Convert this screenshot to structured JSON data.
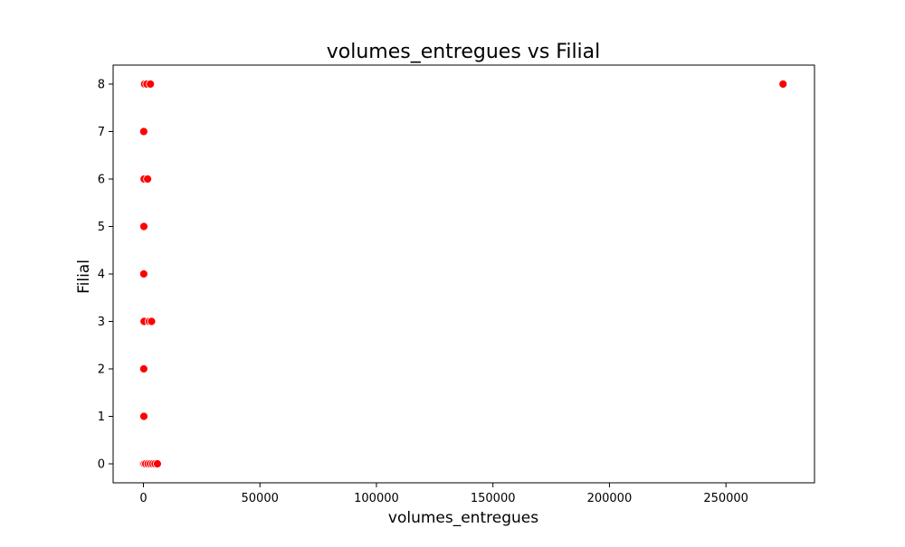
{
  "chart_data": {
    "type": "scatter",
    "title": "volumes_entregues vs Filial",
    "xlabel": "volumes_entregues",
    "ylabel": "Filial",
    "xlim": [
      -13000,
      288000
    ],
    "ylim": [
      -0.4,
      8.4
    ],
    "xticks": [
      0,
      50000,
      100000,
      150000,
      200000,
      250000
    ],
    "xtick_labels": [
      "0",
      "50000",
      "100000",
      "150000",
      "200000",
      "250000"
    ],
    "yticks": [
      0,
      1,
      2,
      3,
      4,
      5,
      6,
      7,
      8
    ],
    "ytick_labels": [
      "0",
      "1",
      "2",
      "3",
      "4",
      "5",
      "6",
      "7",
      "8"
    ],
    "grid": false,
    "marker_color": "#ff0000",
    "marker_edge_color": "#ffffff",
    "points": [
      {
        "x": 0,
        "y": 8
      },
      {
        "x": 200,
        "y": 8
      },
      {
        "x": 500,
        "y": 8
      },
      {
        "x": 1500,
        "y": 8
      },
      {
        "x": 3000,
        "y": 8
      },
      {
        "x": 274500,
        "y": 8
      },
      {
        "x": 0,
        "y": 7
      },
      {
        "x": 150,
        "y": 7
      },
      {
        "x": 0,
        "y": 6
      },
      {
        "x": 300,
        "y": 6
      },
      {
        "x": 1800,
        "y": 6
      },
      {
        "x": 0,
        "y": 5
      },
      {
        "x": 200,
        "y": 5
      },
      {
        "x": 0,
        "y": 4
      },
      {
        "x": 150,
        "y": 4
      },
      {
        "x": 0,
        "y": 3
      },
      {
        "x": 300,
        "y": 3
      },
      {
        "x": 2500,
        "y": 3
      },
      {
        "x": 3500,
        "y": 3
      },
      {
        "x": 0,
        "y": 2
      },
      {
        "x": 150,
        "y": 2
      },
      {
        "x": 0,
        "y": 1
      },
      {
        "x": 200,
        "y": 1
      },
      {
        "x": 0,
        "y": 0
      },
      {
        "x": 400,
        "y": 0
      },
      {
        "x": 1000,
        "y": 0
      },
      {
        "x": 2000,
        "y": 0
      },
      {
        "x": 3000,
        "y": 0
      },
      {
        "x": 4000,
        "y": 0
      },
      {
        "x": 5000,
        "y": 0
      },
      {
        "x": 6000,
        "y": 0
      }
    ]
  }
}
